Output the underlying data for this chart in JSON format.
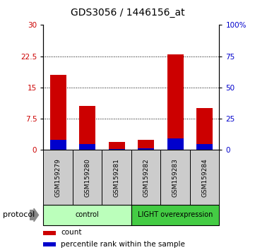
{
  "title": "GDS3056 / 1446156_at",
  "samples": [
    "GSM159279",
    "GSM159280",
    "GSM159281",
    "GSM159282",
    "GSM159283",
    "GSM159284"
  ],
  "count_values": [
    18.0,
    10.5,
    2.0,
    2.5,
    23.0,
    10.0
  ],
  "percentile_values": [
    8.0,
    5.0,
    1.0,
    1.5,
    9.0,
    4.5
  ],
  "left_ylim": [
    0,
    30
  ],
  "right_ylim": [
    0,
    100
  ],
  "left_yticks": [
    0,
    7.5,
    15,
    22.5,
    30
  ],
  "right_yticks": [
    0,
    25,
    50,
    75,
    100
  ],
  "right_yticklabels": [
    "0",
    "25",
    "50",
    "75",
    "100%"
  ],
  "bar_color_red": "#cc0000",
  "bar_color_blue": "#0000cc",
  "groups": [
    {
      "label": "control",
      "indices": [
        0,
        1,
        2
      ],
      "color": "#bbffbb"
    },
    {
      "label": "LIGHT overexpression",
      "indices": [
        3,
        4,
        5
      ],
      "color": "#44cc44"
    }
  ],
  "protocol_label": "protocol",
  "legend_count_label": "count",
  "legend_percentile_label": "percentile rank within the sample",
  "title_fontsize": 10,
  "tick_fontsize": 7.5,
  "sample_bg_color": "#cccccc",
  "sample_border_color": "#000000",
  "group_border_color": "#000000"
}
